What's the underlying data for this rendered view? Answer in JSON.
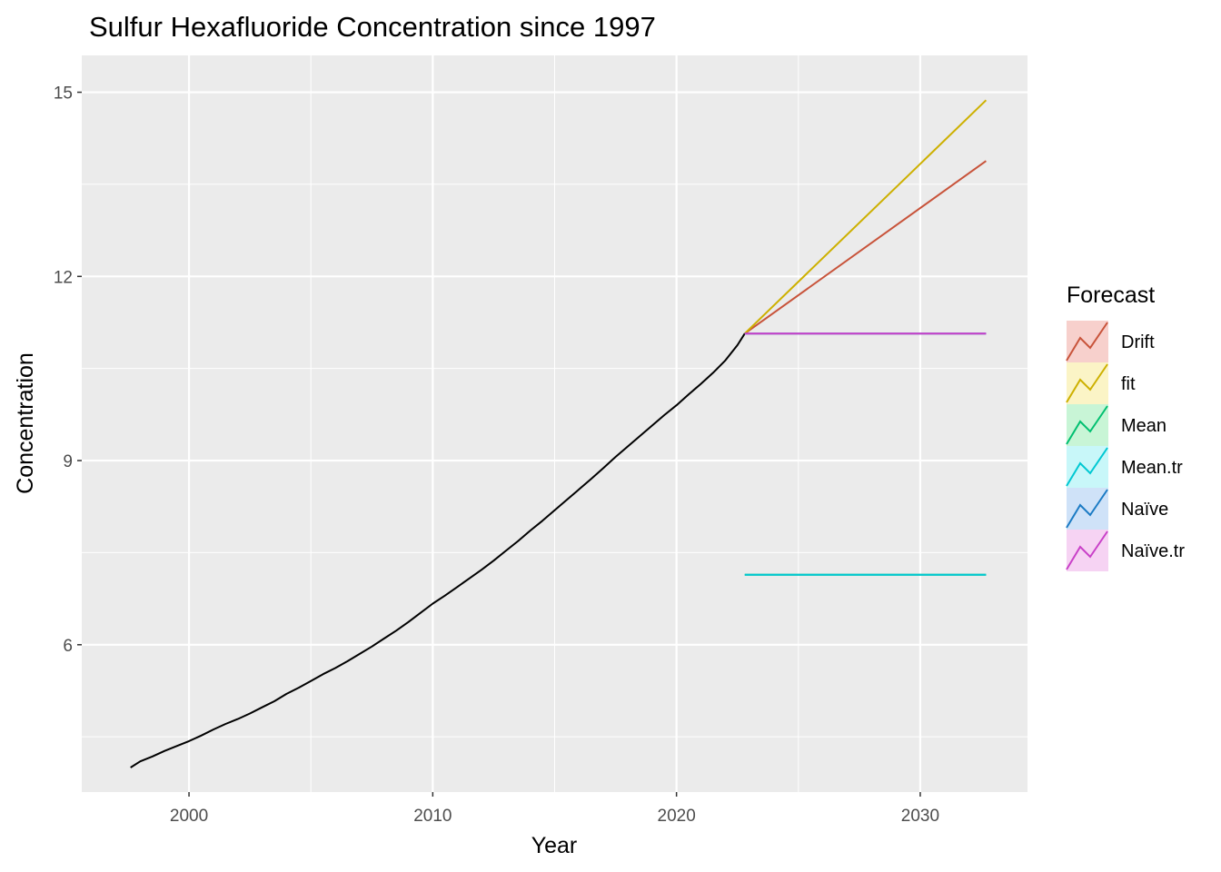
{
  "chart_data": {
    "type": "line",
    "title": "Sulfur Hexafluoride Concentration since 1997",
    "xlabel": "Year",
    "ylabel": "Concentration",
    "xlim": [
      1995.6,
      2034.4
    ],
    "ylim": [
      3.6,
      15.6
    ],
    "x_ticks": [
      2000,
      2010,
      2020,
      2030
    ],
    "x_tick_labels": [
      "2000",
      "2010",
      "2020",
      "2030"
    ],
    "x_minor_ticks": [
      1995,
      2005,
      2015,
      2025
    ],
    "y_ticks": [
      6,
      9,
      12,
      15
    ],
    "y_tick_labels": [
      "6",
      "9",
      "12",
      "15"
    ],
    "y_minor_ticks": [
      4.5,
      7.5,
      10.5,
      13.5
    ],
    "grid": true,
    "background": "#ebebeb",
    "observed": {
      "color": "#000000",
      "x": [
        1997.6,
        1998.0,
        1998.5,
        1999.0,
        1999.5,
        2000.0,
        2000.5,
        2001.0,
        2001.5,
        2002.0,
        2002.5,
        2003.0,
        2003.5,
        2004.0,
        2004.5,
        2005.0,
        2005.5,
        2006.0,
        2006.5,
        2007.0,
        2007.5,
        2008.0,
        2008.5,
        2009.0,
        2009.5,
        2010.0,
        2010.5,
        2011.0,
        2011.5,
        2012.0,
        2012.5,
        2013.0,
        2013.5,
        2014.0,
        2014.5,
        2015.0,
        2015.5,
        2016.0,
        2016.5,
        2017.0,
        2017.5,
        2018.0,
        2018.5,
        2019.0,
        2019.5,
        2020.0,
        2020.5,
        2021.0,
        2021.5,
        2022.0,
        2022.5,
        2022.8
      ],
      "y": [
        4.0,
        4.1,
        4.18,
        4.27,
        4.35,
        4.43,
        4.52,
        4.62,
        4.71,
        4.79,
        4.88,
        4.98,
        5.08,
        5.2,
        5.3,
        5.41,
        5.52,
        5.62,
        5.73,
        5.85,
        5.97,
        6.1,
        6.23,
        6.37,
        6.52,
        6.67,
        6.8,
        6.94,
        7.08,
        7.22,
        7.37,
        7.53,
        7.69,
        7.86,
        8.02,
        8.19,
        8.36,
        8.53,
        8.7,
        8.88,
        9.06,
        9.23,
        9.4,
        9.57,
        9.74,
        9.9,
        10.08,
        10.25,
        10.43,
        10.63,
        10.88,
        11.07
      ]
    },
    "series": [
      {
        "name": "Drift",
        "color": "#c8533a",
        "x": [
          2022.8,
          2032.7
        ],
        "y": [
          11.07,
          13.88
        ]
      },
      {
        "name": "fit",
        "color": "#cdb000",
        "x": [
          2022.8,
          2032.7
        ],
        "y": [
          11.07,
          14.87
        ]
      },
      {
        "name": "Mean",
        "color": "#00c070",
        "x": [
          2022.8,
          2032.7
        ],
        "y": [
          7.14,
          7.14
        ]
      },
      {
        "name": "Mean.tr",
        "color": "#00c8d2",
        "x": [
          2022.8,
          2032.7
        ],
        "y": [
          7.14,
          7.14
        ]
      },
      {
        "name": "Naïve",
        "color": "#1b7bc4",
        "x": [
          2022.8,
          2032.7
        ],
        "y": [
          11.07,
          11.07
        ]
      },
      {
        "name": "Naïve.tr",
        "color": "#c940c8",
        "x": [
          2022.8,
          2032.7
        ],
        "y": [
          11.07,
          11.07
        ]
      }
    ],
    "legend": {
      "title": "Forecast",
      "position": "right",
      "fills": [
        "#f7d0cc",
        "#fbf4c6",
        "#c8f5d6",
        "#c8f7f9",
        "#cfe2f8",
        "#f6d3f3"
      ]
    }
  }
}
